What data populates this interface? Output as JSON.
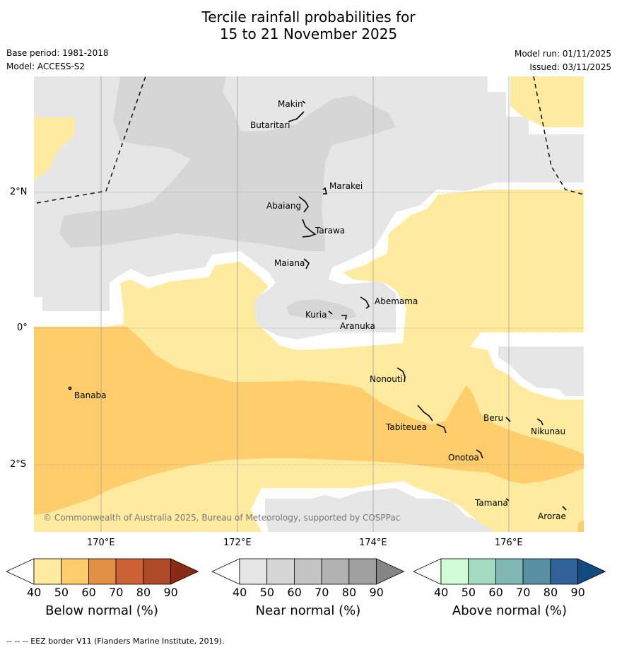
{
  "title": {
    "line1": "Tercile rainfall probabilities for",
    "line2": "15 to 21 November 2025"
  },
  "meta": {
    "base_period": "Base period: 1981-2018",
    "model": "Model: ACCESS-S2",
    "model_run": "Model run: 01/11/2025",
    "issued": "Issued: 03/11/2025"
  },
  "map": {
    "lat_labels": [
      "2°N",
      "0°",
      "2°S"
    ],
    "lon_labels": [
      "170°E",
      "172°E",
      "174°E",
      "176°E"
    ],
    "places": [
      "Makin",
      "Butaritari",
      "Marakei",
      "Abaiang",
      "Tarawa",
      "Maiana",
      "Abemama",
      "Kuria",
      "Aranuka",
      "Nonouti",
      "Banaba",
      "Tabiteuea",
      "Beru",
      "Nikunau",
      "Onotoa",
      "Tamana",
      "Arorae"
    ],
    "copyright": "© Commonwealth of Australia 2025, Bureau of Meteorology, supported by COSPPac",
    "colors": {
      "near_40": "#e6e6e6",
      "near_50": "#d6d6d6",
      "below_40": "#ffeba0",
      "below_50": "#ffcd6b",
      "eez": "#000000"
    }
  },
  "colorbars": [
    {
      "caption": "Below normal (%)",
      "ticks": [
        "40",
        "50",
        "60",
        "70",
        "80",
        "90"
      ],
      "colors": [
        "#ffeba0",
        "#ffcd6b",
        "#e08f45",
        "#cc6135",
        "#ad4a25",
        "#8a2a15"
      ]
    },
    {
      "caption": "Near normal (%)",
      "ticks": [
        "40",
        "50",
        "60",
        "70",
        "80",
        "90"
      ],
      "colors": [
        "#e6e6e6",
        "#d6d6d6",
        "#c4c4c4",
        "#b1b1b1",
        "#9f9f9f",
        "#858585"
      ]
    },
    {
      "caption": "Above normal (%)",
      "ticks": [
        "40",
        "50",
        "60",
        "70",
        "80",
        "90"
      ],
      "colors": [
        "#cffcd4",
        "#a3d9bf",
        "#7fb5b2",
        "#5a90a3",
        "#306299",
        "#124a80"
      ]
    }
  ],
  "footer": "--  --  -- EEZ border V11 (Flanders Marine Institute, 2019)."
}
